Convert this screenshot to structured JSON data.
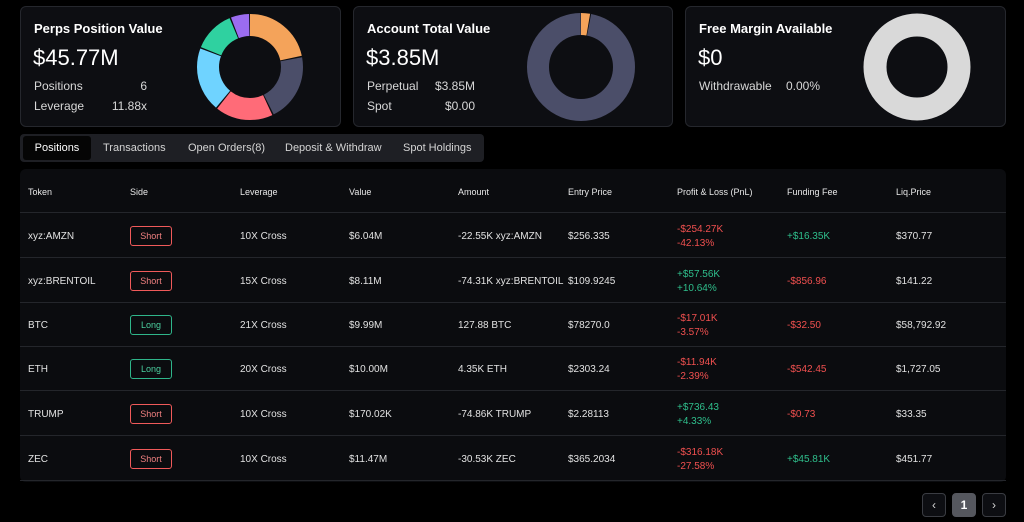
{
  "cards": {
    "perps": {
      "title": "Perps Position Value",
      "value": "$45.77M",
      "rows": [
        {
          "label": "Positions",
          "value": "6"
        },
        {
          "label": "Leverage",
          "value": "11.88x"
        }
      ],
      "segments": [
        {
          "fraction": 0.22,
          "color": "#f4a35a"
        },
        {
          "fraction": 0.21,
          "color": "#4b4e69"
        },
        {
          "fraction": 0.18,
          "color": "#ff6b78"
        },
        {
          "fraction": 0.2,
          "color": "#6fd3ff"
        },
        {
          "fraction": 0.13,
          "color": "#2fd1a0"
        },
        {
          "fraction": 0.06,
          "color": "#9b6cf0"
        }
      ]
    },
    "account": {
      "title": "Account Total Value",
      "value": "$3.85M",
      "rows": [
        {
          "label": "Perpetual",
          "value": "$3.85M"
        },
        {
          "label": "Spot",
          "value": "$0.00"
        }
      ],
      "segments": [
        {
          "fraction": 0.03,
          "color": "#f4a35a"
        },
        {
          "fraction": 0.97,
          "color": "#4b4e69"
        }
      ]
    },
    "margin": {
      "title": "Free Margin Available",
      "value": "$0",
      "rows": [
        {
          "label": "Withdrawable",
          "value": "0.00%"
        }
      ],
      "segments": [
        {
          "fraction": 1.0,
          "color": "#d9d9d9"
        }
      ]
    }
  },
  "tabs": [
    "Positions",
    "Transactions",
    "Open Orders(8)",
    "Deposit & Withdraw",
    "Spot Holdings"
  ],
  "table": {
    "headers": [
      "Token",
      "Side",
      "Leverage",
      "Value",
      "Amount",
      "Entry Price",
      "Profit & Loss (PnL)",
      "Funding Fee",
      "Liq.Price"
    ],
    "rows": [
      {
        "token": "xyz:AMZN",
        "side": "Short",
        "leverage": "10X Cross",
        "value": "$6.04M",
        "amount": "-22.55K xyz:AMZN",
        "entry": "$256.335",
        "pnl": "-$254.27K",
        "pnl_pct": "-42.13%",
        "pnl_dir": "neg",
        "funding": "+$16.35K",
        "funding_dir": "pos",
        "liq": "$370.77"
      },
      {
        "token": "xyz:BRENTOIL",
        "side": "Short",
        "leverage": "15X Cross",
        "value": "$8.11M",
        "amount": "-74.31K xyz:BRENTOIL",
        "entry": "$109.9245",
        "pnl": "+$57.56K",
        "pnl_pct": "+10.64%",
        "pnl_dir": "pos",
        "funding": "-$856.96",
        "funding_dir": "neg",
        "liq": "$141.22"
      },
      {
        "token": "BTC",
        "side": "Long",
        "leverage": "21X Cross",
        "value": "$9.99M",
        "amount": "127.88 BTC",
        "entry": "$78270.0",
        "pnl": "-$17.01K",
        "pnl_pct": "-3.57%",
        "pnl_dir": "neg",
        "funding": "-$32.50",
        "funding_dir": "neg",
        "liq": "$58,792.92"
      },
      {
        "token": "ETH",
        "side": "Long",
        "leverage": "20X Cross",
        "value": "$10.00M",
        "amount": "4.35K ETH",
        "entry": "$2303.24",
        "pnl": "-$11.94K",
        "pnl_pct": "-2.39%",
        "pnl_dir": "neg",
        "funding": "-$542.45",
        "funding_dir": "neg",
        "liq": "$1,727.05"
      },
      {
        "token": "TRUMP",
        "side": "Short",
        "leverage": "10X Cross",
        "value": "$170.02K",
        "amount": "-74.86K TRUMP",
        "entry": "$2.28113",
        "pnl": "+$736.43",
        "pnl_pct": "+4.33%",
        "pnl_dir": "pos",
        "funding": "-$0.73",
        "funding_dir": "neg",
        "liq": "$33.35"
      },
      {
        "token": "ZEC",
        "side": "Short",
        "leverage": "10X Cross",
        "value": "$11.47M",
        "amount": "-30.53K ZEC",
        "entry": "$365.2034",
        "pnl": "-$316.18K",
        "pnl_pct": "-27.58%",
        "pnl_dir": "neg",
        "funding": "+$45.81K",
        "funding_dir": "pos",
        "liq": "$451.77"
      }
    ]
  },
  "pagination": {
    "prev_icon": "chevron-left-icon",
    "prev": "‹",
    "current": "1",
    "next_icon": "chevron-right-icon",
    "next": "›"
  }
}
